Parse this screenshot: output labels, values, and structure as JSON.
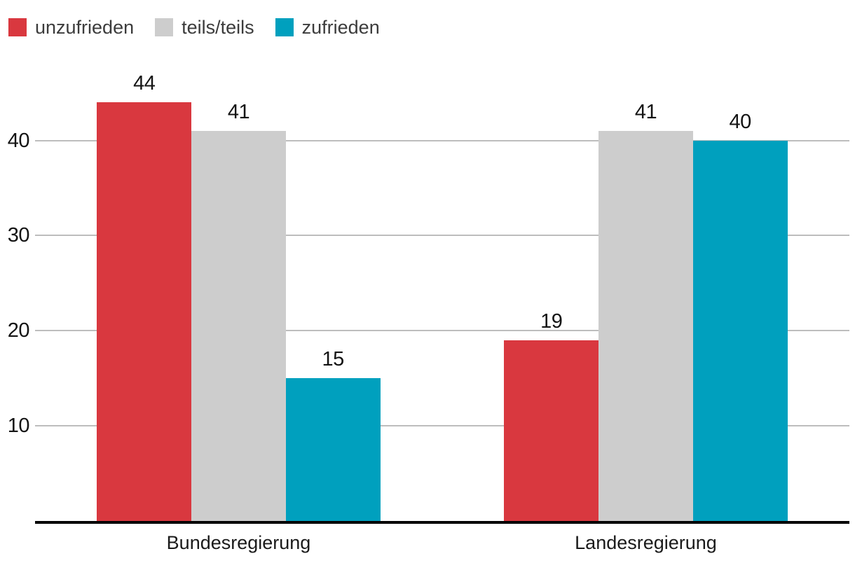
{
  "chart_data": {
    "type": "bar",
    "title": "",
    "xlabel": "",
    "ylabel": "",
    "categories": [
      "Bundesregierung",
      "Landesregierung"
    ],
    "series": [
      {
        "name": "unzufrieden",
        "color": "#d9383f",
        "values": [
          44,
          19
        ]
      },
      {
        "name": "teils/teils",
        "color": "#cdcdcd",
        "values": [
          41,
          41
        ]
      },
      {
        "name": "zufrieden",
        "color": "#00a0be",
        "values": [
          15,
          40
        ]
      }
    ],
    "yticks": [
      10,
      20,
      30,
      40
    ],
    "ylim": [
      0,
      47.4
    ],
    "grid": "horizontal",
    "legend_position": "top-left",
    "value_labels_shown": true
  },
  "colors": {
    "gridline": "#bdbdbd",
    "axis_line": "#000000",
    "number_text": "#141414",
    "category_text": "#1a1a1a",
    "legend_text": "#3c3c3c",
    "background": "#ffffff"
  }
}
